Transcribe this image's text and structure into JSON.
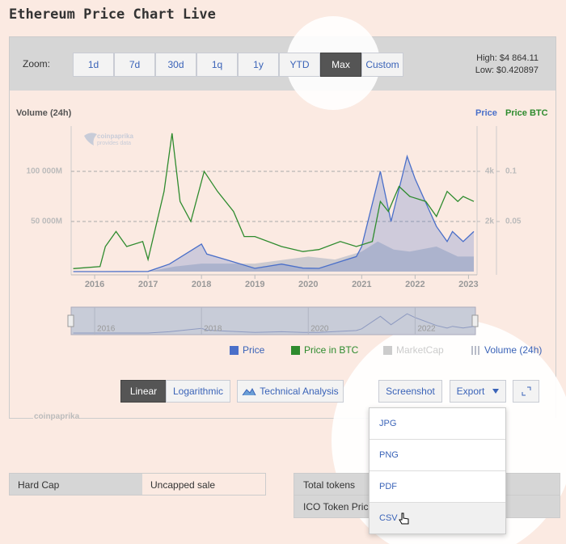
{
  "title": "Ethereum Price Chart Live",
  "zoom": {
    "label": "Zoom:",
    "options": [
      "1d",
      "7d",
      "30d",
      "1q",
      "1y",
      "YTD",
      "Max",
      "Custom"
    ],
    "active": 6
  },
  "range": {
    "high": "High: $4 864.11",
    "low": "Low: $0.420897"
  },
  "chart_data": {
    "type": "line",
    "left_label": "Volume (24h)",
    "right_labels": [
      "Price",
      "Price BTC"
    ],
    "xlim": [
      2015.56,
      2023.13
    ],
    "xticks": [
      2016,
      2017,
      2018,
      2019,
      2020,
      2021,
      2022,
      2023
    ],
    "ylim": [
      0,
      145200000000
    ],
    "yticks": [
      {
        "value": 50000000000,
        "label": "50 000M"
      },
      {
        "value": 100000000000,
        "label": "100 000M"
      }
    ],
    "y2lim": [
      0,
      5806
    ],
    "y2ticks": [
      {
        "value": 2000,
        "label": "2k"
      },
      {
        "value": 4000,
        "label": "4k"
      }
    ],
    "y3lim": [
      0,
      0.1452
    ],
    "y3ticks": [
      0.05,
      0.1
    ],
    "grid": true,
    "watermark": [
      "coinpaprika",
      "provides data"
    ],
    "series": [
      {
        "name": "Price",
        "color": "#4a6fc9",
        "axis": "y2",
        "x": [
          2015.6,
          2016.0,
          2017.0,
          2017.4,
          2018.0,
          2018.1,
          2018.5,
          2019.0,
          2019.5,
          2019.9,
          2020.2,
          2020.6,
          2020.9,
          2021.0,
          2021.35,
          2021.55,
          2021.85,
          2022.0,
          2022.4,
          2022.6,
          2022.7,
          2022.9,
          2023.1
        ],
        "values": [
          1,
          1,
          8,
          300,
          1100,
          700,
          450,
          130,
          300,
          140,
          130,
          400,
          600,
          1000,
          4000,
          2000,
          4600,
          3700,
          1800,
          1200,
          1600,
          1200,
          1600
        ]
      },
      {
        "name": "Price in BTC",
        "color": "#2e8b2e",
        "axis": "y3",
        "x": [
          2015.6,
          2016.1,
          2016.2,
          2016.4,
          2016.6,
          2016.9,
          2017.0,
          2017.3,
          2017.45,
          2017.6,
          2017.8,
          2018.05,
          2018.3,
          2018.6,
          2018.8,
          2019.0,
          2019.5,
          2019.9,
          2020.2,
          2020.6,
          2020.9,
          2021.2,
          2021.35,
          2021.5,
          2021.7,
          2021.9,
          2022.2,
          2022.4,
          2022.6,
          2022.8,
          2022.9,
          2023.1
        ],
        "values": [
          0.003,
          0.005,
          0.025,
          0.04,
          0.025,
          0.03,
          0.012,
          0.08,
          0.138,
          0.07,
          0.05,
          0.1,
          0.08,
          0.06,
          0.035,
          0.035,
          0.025,
          0.02,
          0.022,
          0.03,
          0.025,
          0.03,
          0.07,
          0.06,
          0.085,
          0.075,
          0.07,
          0.055,
          0.08,
          0.07,
          0.075,
          0.07
        ]
      },
      {
        "name": "MarketCap",
        "color": "#cccccc",
        "visible": false
      },
      {
        "name": "Volume (24h)",
        "color": "#b8bcc8",
        "axis": "y",
        "x": [
          2015.6,
          2017.0,
          2017.5,
          2018.0,
          2019.0,
          2020.0,
          2020.5,
          2021.0,
          2021.3,
          2021.6,
          2021.9,
          2022.4,
          2022.8,
          2023.1
        ],
        "values": [
          0,
          0,
          5000000000,
          8000000000,
          8000000000,
          15000000000,
          12000000000,
          20000000000,
          30000000000,
          22000000000,
          20000000000,
          25000000000,
          15000000000,
          15000000000
        ]
      }
    ],
    "navigator": {
      "xticks": [
        2016,
        2018,
        2020,
        2022
      ]
    }
  },
  "controls": {
    "scale": [
      "Linear",
      "Logarithmic"
    ],
    "active_scale": 0,
    "technical": "Technical Analysis",
    "screenshot": "Screenshot",
    "export": "Export",
    "export_options": [
      "JPG",
      "PNG",
      "PDF",
      "CSV"
    ]
  },
  "footer": "coinpaprika",
  "table": {
    "left": [
      [
        "Hard Cap",
        "Uncapped sale"
      ]
    ],
    "right": [
      "Total tokens",
      "ICO Token Price"
    ]
  }
}
